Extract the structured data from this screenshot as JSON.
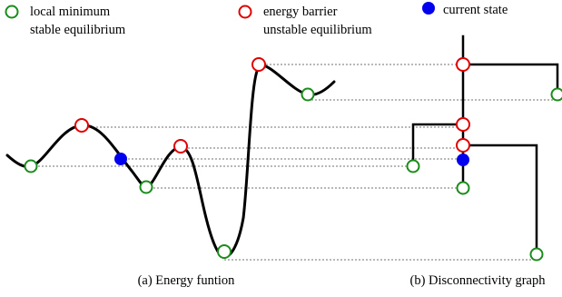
{
  "legend": {
    "local_minimum": {
      "line1": "local minimum",
      "line2": "stable equilibrium",
      "color": "#1a8c1a",
      "icon": "open-circle-icon"
    },
    "energy_barrier": {
      "line1": "energy barrier",
      "line2": "unstable equilibrium",
      "color": "#e00000",
      "icon": "open-circle-icon"
    },
    "current_state": {
      "line1": "current state",
      "color": "#0000ee",
      "icon": "filled-circle-icon"
    }
  },
  "captions": {
    "energy_function": "(a) Energy funtion",
    "disconnectivity_graph": "(b) Disconnectivity graph"
  }
}
